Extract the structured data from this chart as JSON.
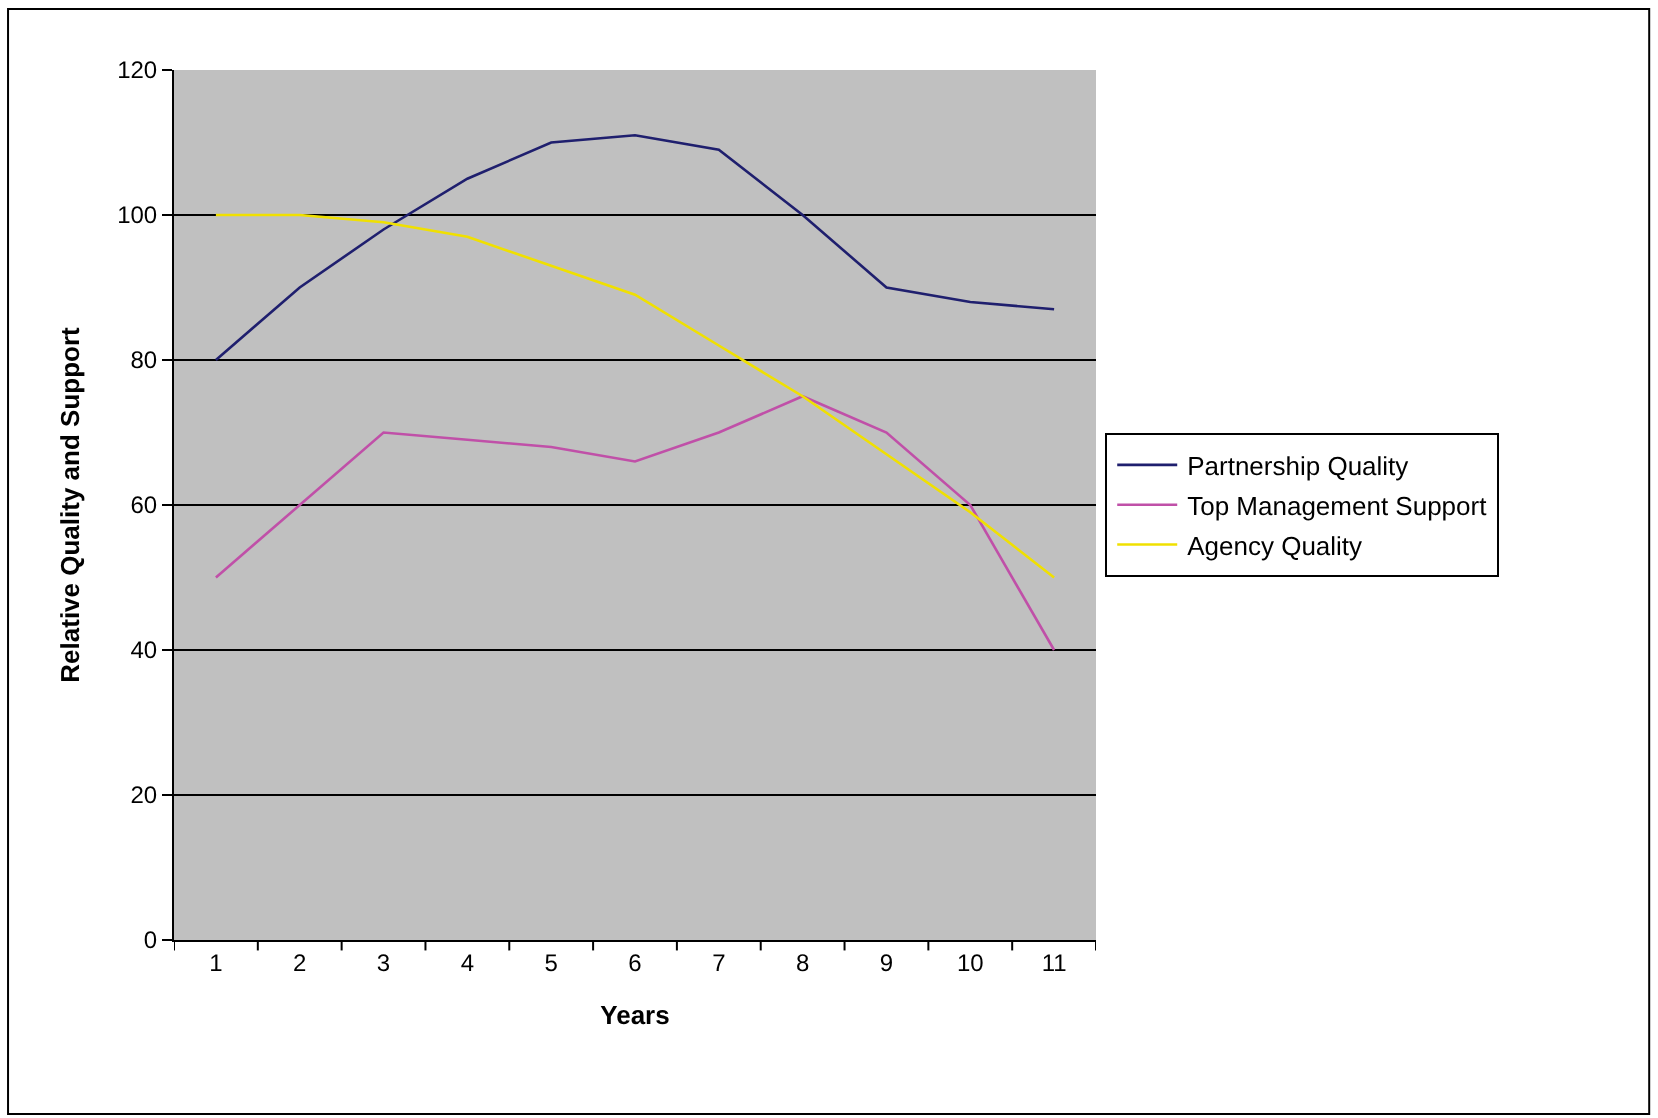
{
  "chart_data": {
    "type": "line",
    "xlabel": "Years",
    "ylabel": "Relative Quality and Support",
    "categories": [
      "1",
      "2",
      "3",
      "4",
      "5",
      "6",
      "7",
      "8",
      "9",
      "10",
      "11"
    ],
    "series": [
      {
        "name": "Partnership Quality",
        "color": "#1f1f6e",
        "values": [
          80,
          90,
          98,
          105,
          110,
          111,
          109,
          100,
          90,
          88,
          87
        ]
      },
      {
        "name": "Top Management Support",
        "color": "#c050a8",
        "values": [
          50,
          60,
          70,
          69,
          68,
          66,
          70,
          75,
          70,
          60,
          40
        ]
      },
      {
        "name": "Agency Quality",
        "color": "#f0e000",
        "values": [
          100,
          100,
          99,
          97,
          93,
          89,
          82,
          75,
          67,
          59,
          50
        ]
      }
    ],
    "ylim": [
      0,
      120
    ],
    "yticks": [
      0,
      20,
      40,
      60,
      80,
      100,
      120
    ],
    "grid": "y",
    "legend": "right",
    "marker": "none",
    "line_style": "solid"
  }
}
